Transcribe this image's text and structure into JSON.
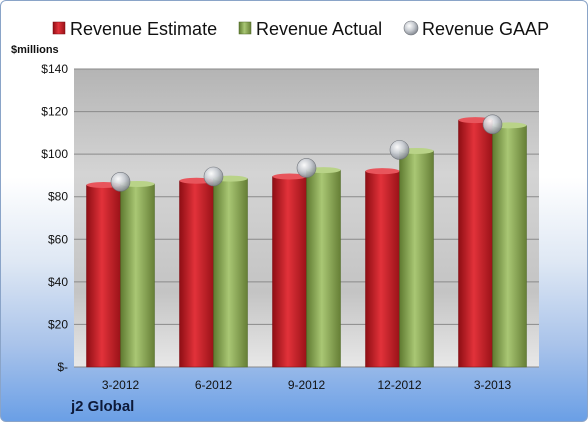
{
  "chart_data": {
    "type": "bar",
    "ylabel": "$millions",
    "company": "j2 Global",
    "categories": [
      "3-2012",
      "6-2012",
      "9-2012",
      "12-2012",
      "3-2013"
    ],
    "series": [
      {
        "name": "Revenue Estimate",
        "kind": "bar",
        "color": "#c0202a",
        "values": [
          85.5,
          87.5,
          89.5,
          92,
          116
        ]
      },
      {
        "name": "Revenue Actual",
        "kind": "bar",
        "color": "#8fad5a",
        "values": [
          86,
          88.5,
          92.5,
          101.5,
          113.5
        ]
      },
      {
        "name": "Revenue GAAP",
        "kind": "marker",
        "color": "#b8bcc4",
        "values": [
          87,
          89.5,
          93.5,
          102,
          114
        ]
      }
    ],
    "ylim": [
      0,
      140
    ],
    "yticks": [
      0,
      20,
      40,
      60,
      80,
      100,
      120,
      140
    ],
    "ytick_labels": [
      "$-",
      "$20",
      "$40",
      "$60",
      "$80",
      "$100",
      "$120",
      "$140"
    ],
    "grid": true,
    "legend": "top"
  }
}
